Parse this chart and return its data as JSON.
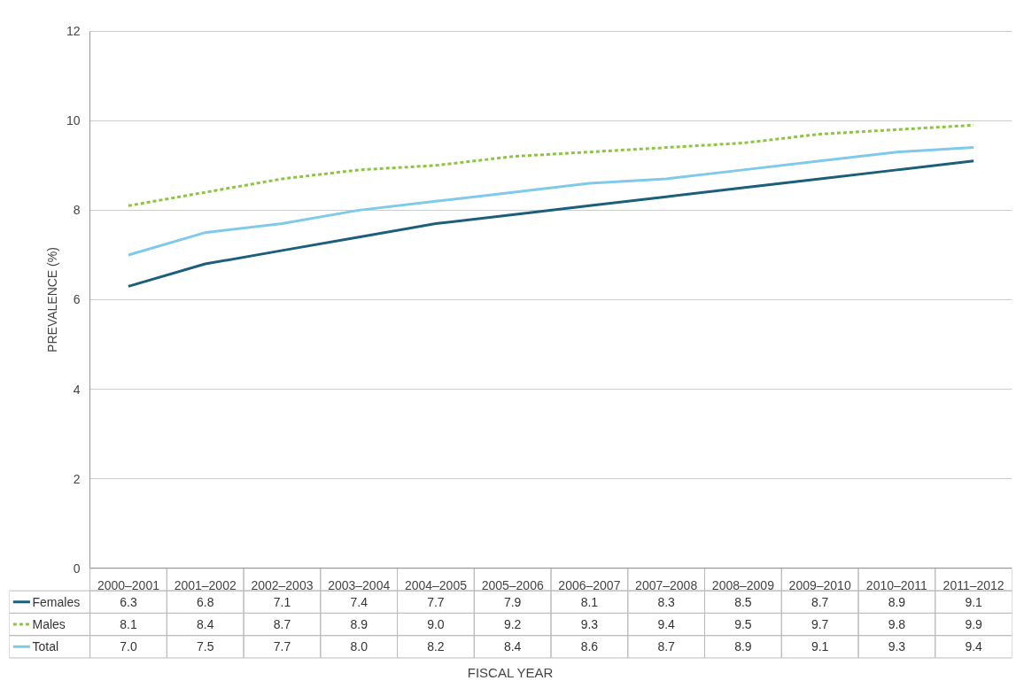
{
  "chart_data": {
    "type": "line",
    "annotations": [
      "FISCAL YEAR"
    ],
    "ylabel": "PREVALENCE (%)",
    "categories": [
      "2000–2001",
      "2001–2002",
      "2002–2003",
      "2003–2004",
      "2004–2005",
      "2005–2006",
      "2006–2007",
      "2007–2008",
      "2008–2009",
      "2009–2010",
      "2010–2011",
      "2011–2012"
    ],
    "series": [
      {
        "name": "Females",
        "color": "#1b5f7b",
        "line_style": "solid",
        "values": [
          6.3,
          6.8,
          7.1,
          7.4,
          7.7,
          7.9,
          8.1,
          8.3,
          8.5,
          8.7,
          8.9,
          9.1
        ],
        "value_labels": [
          "6.3",
          "6.8",
          "7.1",
          "7.4",
          "7.7",
          "7.9",
          "8.1",
          "8.3",
          "8.5",
          "8.7",
          "8.9",
          "9.1"
        ]
      },
      {
        "name": "Males",
        "color": "#8cc63f",
        "line_style": "dashed",
        "values": [
          8.1,
          8.4,
          8.7,
          8.9,
          9.0,
          9.2,
          9.3,
          9.4,
          9.5,
          9.7,
          9.8,
          9.9
        ],
        "value_labels": [
          "8.1",
          "8.4",
          "8.7",
          "8.9",
          "9.0",
          "9.2",
          "9.3",
          "9.4",
          "9.5",
          "9.7",
          "9.8",
          "9.9"
        ]
      },
      {
        "name": "Total",
        "color": "#7fcaea",
        "line_style": "solid",
        "values": [
          7.0,
          7.5,
          7.7,
          8.0,
          8.2,
          8.4,
          8.6,
          8.7,
          8.9,
          9.1,
          9.3,
          9.4
        ],
        "value_labels": [
          "7.0",
          "7.5",
          "7.7",
          "8.0",
          "8.2",
          "8.4",
          "8.6",
          "8.7",
          "8.9",
          "9.1",
          "9.3",
          "9.4"
        ]
      }
    ],
    "ylim": [
      0,
      12
    ],
    "yticks": [
      0,
      2,
      4,
      6,
      8,
      10,
      12
    ],
    "grid": "y",
    "legend": "bottom"
  }
}
